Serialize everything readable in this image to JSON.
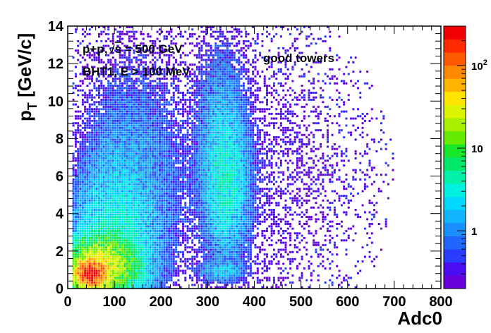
{
  "chart_data": {
    "type": "heatmap",
    "xlabel": "Adc0",
    "ylabel": "p",
    "ylabel_sub": "T",
    "ylabel_unit": " [GeV/c]",
    "xlim": [
      0,
      800
    ],
    "ylim": [
      0,
      14
    ],
    "x_ticks": [
      0,
      100,
      200,
      300,
      400,
      500,
      600,
      700,
      800
    ],
    "y_ticks": [
      0,
      2,
      4,
      6,
      8,
      10,
      12,
      14
    ],
    "z_scale": "log",
    "z_range": [
      0.2,
      300
    ],
    "colorbar_ticks": [
      {
        "value": 1,
        "label": "1"
      },
      {
        "value": 10,
        "label": "10"
      },
      {
        "value": 100,
        "label": "10",
        "sup": "2"
      }
    ],
    "annotations": [
      {
        "text": "p+p,",
        "sqrt": "s",
        "rest": " = 500 GeV"
      },
      {
        "text": "BHT1, E > 100 MeV"
      },
      {
        "text": "good towers"
      }
    ],
    "clusters": [
      {
        "x": 50,
        "y": 0.8,
        "sx": 16,
        "sy": 0.35,
        "amp": 250
      },
      {
        "x": 70,
        "y": 1.2,
        "sx": 40,
        "sy": 0.8,
        "amp": 30
      },
      {
        "x": 100,
        "y": 2.5,
        "sx": 55,
        "sy": 2.5,
        "amp": 3
      },
      {
        "x": 130,
        "y": 7,
        "sx": 70,
        "sy": 4,
        "amp": 0.7
      },
      {
        "x": 340,
        "y": 5.5,
        "sx": 28,
        "sy": 2.2,
        "amp": 3
      },
      {
        "x": 330,
        "y": 9,
        "sx": 30,
        "sy": 3,
        "amp": 0.8
      },
      {
        "x": 330,
        "y": 0.9,
        "sx": 30,
        "sy": 0.3,
        "amp": 1.5
      },
      {
        "x": 350,
        "y": 6,
        "sx": 180,
        "sy": 5,
        "amp": 0.35
      }
    ],
    "palette": [
      "#6a00d9",
      "#4a0cf2",
      "#2a3cff",
      "#1f66ff",
      "#1a90ff",
      "#12b4ff",
      "#00d8ff",
      "#00f0e0",
      "#00f0a8",
      "#00e86a",
      "#18e62a",
      "#66ea00",
      "#a8f000",
      "#dcf400",
      "#ffe400",
      "#ffb400",
      "#ff8a00",
      "#ff5a00",
      "#ff2a00",
      "#f00000"
    ]
  }
}
